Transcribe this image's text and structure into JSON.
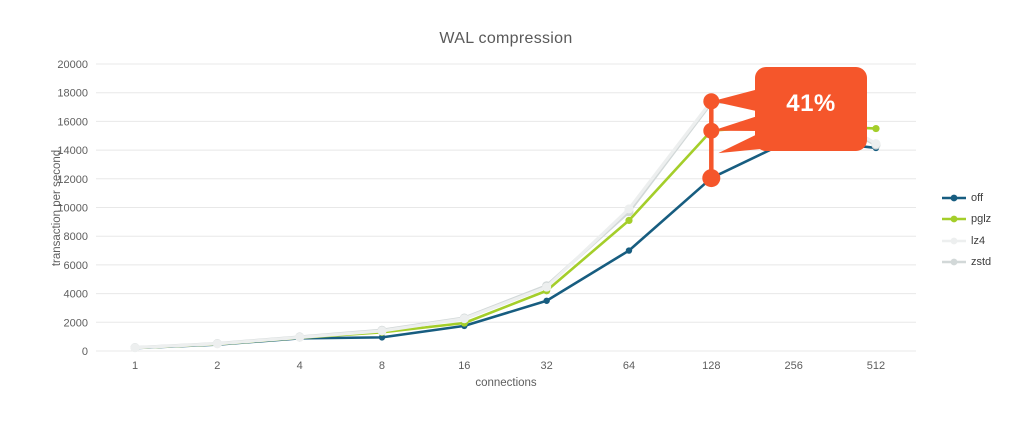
{
  "chart_data": {
    "type": "line",
    "title": "WAL compression",
    "xlabel": "connections",
    "ylabel": "transaction per second",
    "categories": [
      1,
      2,
      4,
      8,
      16,
      32,
      64,
      128,
      256,
      512
    ],
    "y_ticks": [
      0,
      2000,
      4000,
      6000,
      8000,
      10000,
      12000,
      14000,
      16000,
      18000,
      20000
    ],
    "ylim": [
      0,
      20000
    ],
    "grid": "horizontal",
    "legend_position": "right",
    "series": [
      {
        "name": "off",
        "color": "#175D80",
        "values": [
          200,
          450,
          880,
          950,
          1750,
          3500,
          7000,
          12050,
          14800,
          14150
        ]
      },
      {
        "name": "pglz",
        "color": "#A4CE2A",
        "values": [
          210,
          470,
          920,
          1300,
          1950,
          4200,
          9100,
          15350,
          15800,
          15500
        ]
      },
      {
        "name": "lz4",
        "color": "#EDEFEF",
        "values": [
          230,
          500,
          950,
          1400,
          2250,
          4450,
          9900,
          17400,
          17800,
          14450
        ]
      },
      {
        "name": "zstd",
        "color": "#D2D8D8",
        "values": [
          240,
          520,
          980,
          1450,
          2300,
          4550,
          9700,
          17300,
          17600,
          14350
        ]
      }
    ],
    "annotation": {
      "label": "41%",
      "color": "#F5562B",
      "text_color": "#FFFFFF",
      "x": 128,
      "marker_values": [
        12050,
        15350,
        17400
      ]
    }
  }
}
